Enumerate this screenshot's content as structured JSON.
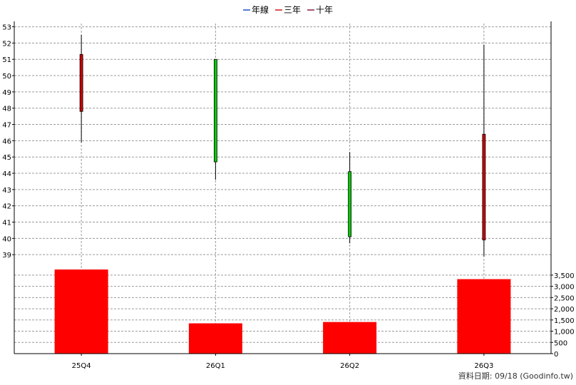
{
  "legend": [
    {
      "label": "年線",
      "color": "#1f4fcf"
    },
    {
      "label": "三年",
      "color": "#d01818"
    },
    {
      "label": "十年",
      "color": "#8b1a3a"
    }
  ],
  "footer": "資料日期: 09/18  (Goodinfo.tw)",
  "chart_data": {
    "type": "candlestick",
    "categories": [
      "25Q4",
      "26Q1",
      "26Q2",
      "26Q3"
    ],
    "price": {
      "ylim": [
        38,
        53.2
      ],
      "ticks": [
        39,
        40,
        41,
        42,
        43,
        44,
        45,
        46,
        47,
        48,
        49,
        50,
        51,
        52,
        53
      ],
      "candles": [
        {
          "period": "25Q4",
          "open": 47.8,
          "high": 52.5,
          "low": 45.9,
          "close": 51.3,
          "color": "#cc0000"
        },
        {
          "period": "26Q1",
          "open": 51.0,
          "high": 51.0,
          "low": 43.6,
          "close": 44.7,
          "color": "#00cc00"
        },
        {
          "period": "26Q2",
          "open": 44.1,
          "high": 45.3,
          "low": 39.7,
          "close": 40.1,
          "color": "#00cc00"
        },
        {
          "period": "26Q3",
          "open": 39.9,
          "high": 51.9,
          "low": 38.9,
          "close": 46.4,
          "color": "#cc0000"
        }
      ]
    },
    "volume": {
      "ylim": [
        0,
        3750
      ],
      "ticks": [
        "0",
        "500",
        "1,000",
        "1,500",
        "2,000",
        "2,500",
        "3,000",
        "3,500"
      ],
      "tick_values": [
        0,
        500,
        1000,
        1500,
        2000,
        2500,
        3000,
        3500
      ],
      "values": [
        3750,
        1350,
        1410,
        3320
      ],
      "color": "#ff0000"
    }
  }
}
